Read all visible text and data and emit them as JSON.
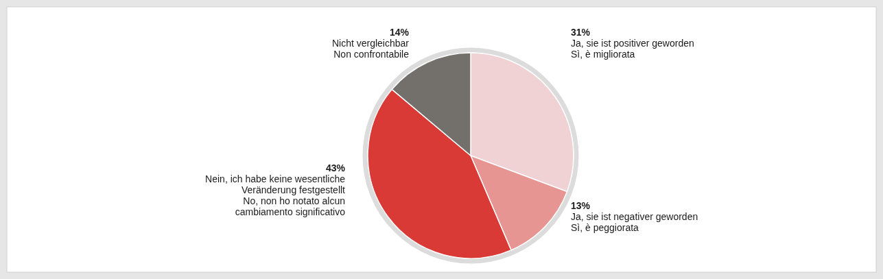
{
  "chart_data": {
    "type": "pie",
    "categories": [
      "Ja, sie ist positiver geworden\nSì, è migliorata",
      "Ja, sie ist negativer geworden\nSì, è peggiorata",
      "Nein, ich habe keine wesentliche\nVeränderung festgestellt\nNo, non ho notato alcun\ncambiamento significativo",
      "Nicht vergleichbar\nNon confrontabile"
    ],
    "values": [
      31,
      13,
      43,
      14
    ],
    "value_labels": [
      "31%",
      "13%",
      "43%",
      "14%"
    ],
    "colors": [
      "#f0d2d5",
      "#e69593",
      "#d93a36",
      "#736f6b"
    ]
  }
}
